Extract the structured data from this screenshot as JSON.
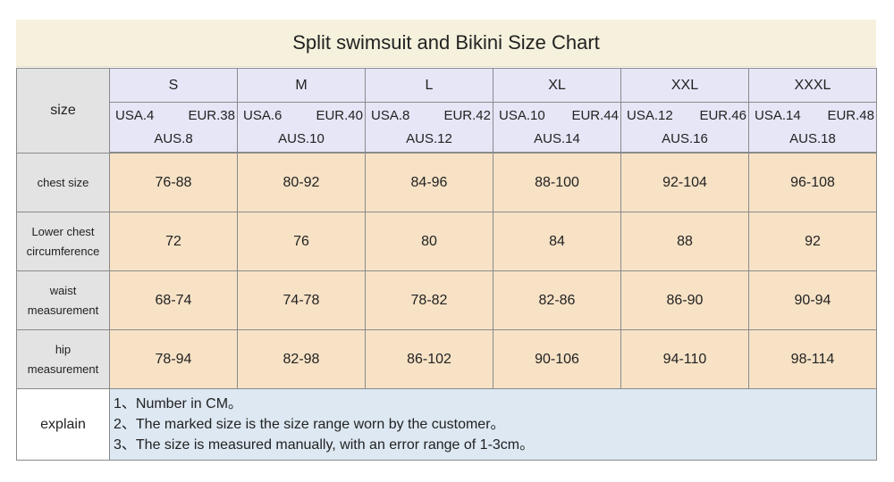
{
  "title": "Split swimsuit and Bikini Size Chart",
  "row_labels": {
    "size": "size",
    "chest": "chest size",
    "lower_chest_1": "Lower chest",
    "lower_chest_2": "circumference",
    "waist_1": "waist",
    "waist_2": "measurement",
    "hip_1": "hip",
    "hip_2": "measurement",
    "explain": "explain"
  },
  "sizes": [
    {
      "name": "S",
      "usa": "USA.4",
      "eur": "EUR.38",
      "aus": "AUS.8",
      "chest": "76-88",
      "lower_chest": "72",
      "waist": "68-74",
      "hip": "78-94"
    },
    {
      "name": "M",
      "usa": "USA.6",
      "eur": "EUR.40",
      "aus": "AUS.10",
      "chest": "80-92",
      "lower_chest": "76",
      "waist": "74-78",
      "hip": "82-98"
    },
    {
      "name": "L",
      "usa": "USA.8",
      "eur": "EUR.42",
      "aus": "AUS.12",
      "chest": "84-96",
      "lower_chest": "80",
      "waist": "78-82",
      "hip": "86-102"
    },
    {
      "name": "XL",
      "usa": "USA.10",
      "eur": "EUR.44",
      "aus": "AUS.14",
      "chest": "88-100",
      "lower_chest": "84",
      "waist": "82-86",
      "hip": "90-106"
    },
    {
      "name": "XXL",
      "usa": "USA.12",
      "eur": "EUR.46",
      "aus": "AUS.16",
      "chest": "92-104",
      "lower_chest": "88",
      "waist": "86-90",
      "hip": "94-110"
    },
    {
      "name": "XXXL",
      "usa": "USA.14",
      "eur": "EUR.48",
      "aus": "AUS.18",
      "chest": "96-108",
      "lower_chest": "92",
      "waist": "90-94",
      "hip": "98-114"
    }
  ],
  "explain_notes": [
    "1、Number in CM。",
    "2、The marked size is the size range worn by the customer。",
    "3、The size is measured manually, with an error range of 1-3cm。"
  ],
  "colors": {
    "title_bg": "#f5f1dc",
    "label_bg": "#e3e3e3",
    "header_bg": "#e6e6f7",
    "value_bg": "#f7e2c6",
    "explain_bg": "#dde8f2",
    "border": "#8a8a8a"
  }
}
